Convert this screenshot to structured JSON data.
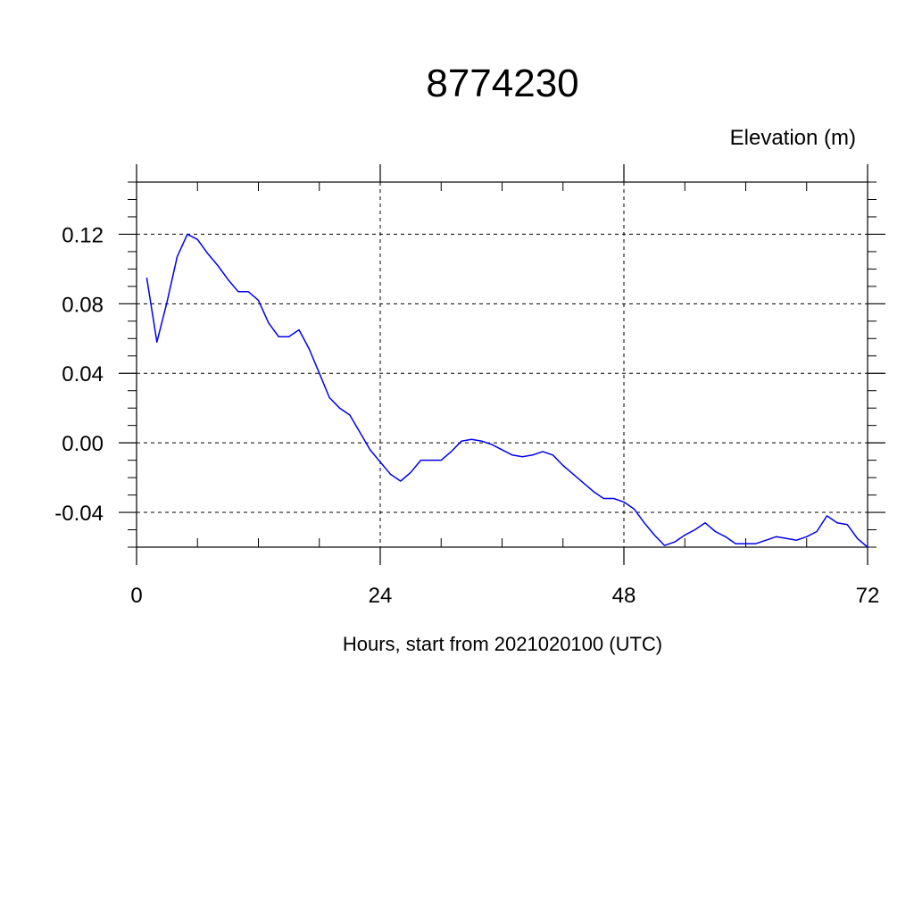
{
  "chart_data": {
    "type": "line",
    "title": "8774230",
    "ylabel": "Elevation (m)",
    "xlabel": "Hours, start from 2021020100 (UTC)",
    "xlim": [
      0,
      72
    ],
    "ylim": [
      -0.06,
      0.15
    ],
    "x_ticks": [
      0,
      24,
      48,
      72
    ],
    "x_tick_labels": [
      "0",
      "24",
      "48",
      "72"
    ],
    "x_minor_step": 6,
    "y_ticks": [
      -0.04,
      0.0,
      0.04,
      0.08,
      0.12
    ],
    "y_tick_labels": [
      "-0.04",
      "0.00",
      "0.04",
      "0.08",
      "0.12"
    ],
    "y_minor_step": 0.01,
    "grid": true,
    "colors": {
      "line": "#0000ee",
      "axis": "#000000",
      "grid": "#000000"
    },
    "series": [
      {
        "x": [
          1,
          2,
          3,
          4,
          5,
          6,
          7,
          8,
          9,
          10,
          11,
          12,
          13,
          14,
          15,
          16,
          17,
          18,
          19,
          20,
          21,
          22,
          23,
          24,
          25,
          26,
          27,
          28,
          29,
          30,
          31,
          32,
          33,
          34,
          35,
          36,
          37,
          38,
          39,
          40,
          41,
          42,
          43,
          44,
          45,
          46,
          47,
          48,
          49,
          50,
          51,
          52,
          53,
          54,
          55,
          56,
          57,
          58,
          59,
          60,
          61,
          62,
          63,
          64,
          65,
          66,
          67,
          68,
          69,
          70,
          71,
          72
        ],
        "y": [
          0.095,
          0.058,
          0.081,
          0.107,
          0.12,
          0.117,
          0.109,
          0.102,
          0.094,
          0.087,
          0.087,
          0.082,
          0.069,
          0.061,
          0.061,
          0.065,
          0.054,
          0.04,
          0.026,
          0.02,
          0.016,
          0.006,
          -0.004,
          -0.011,
          -0.018,
          -0.022,
          -0.017,
          -0.01,
          -0.01,
          -0.01,
          -0.005,
          0.001,
          0.002,
          0.001,
          -0.001,
          -0.004,
          -0.007,
          -0.008,
          -0.007,
          -0.005,
          -0.007,
          -0.013,
          -0.018,
          -0.023,
          -0.028,
          -0.032,
          -0.032,
          -0.034,
          -0.038,
          -0.046,
          -0.053,
          -0.059,
          -0.057,
          -0.053,
          -0.05,
          -0.046,
          -0.051,
          -0.054,
          -0.058,
          -0.058,
          -0.058,
          -0.056,
          -0.054,
          -0.055,
          -0.056,
          -0.054,
          -0.051,
          -0.042,
          -0.046,
          -0.047,
          -0.055,
          -0.06
        ]
      }
    ]
  }
}
